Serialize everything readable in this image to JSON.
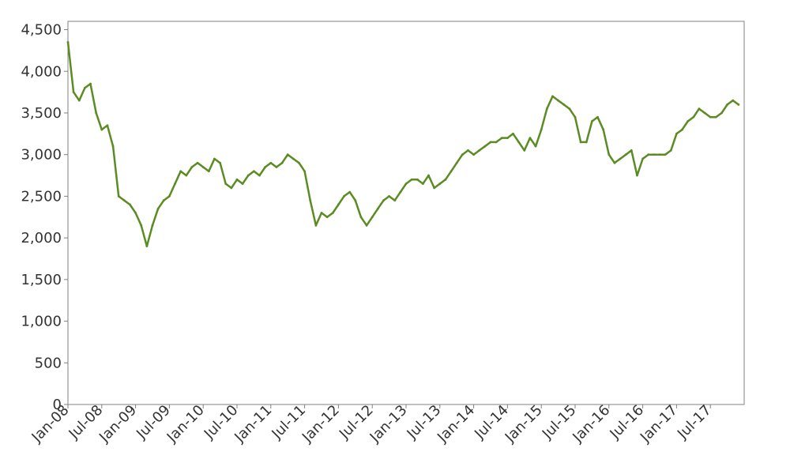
{
  "chart_data": {
    "type": "line",
    "title": "",
    "xlabel": "",
    "ylabel": "",
    "ylim": [
      0,
      4600
    ],
    "xlim": [
      "2008-01",
      "2017-12"
    ],
    "grid": false,
    "legend": "none",
    "y_ticks": [
      0,
      500,
      1000,
      1500,
      2000,
      2500,
      3000,
      3500,
      4000,
      4500
    ],
    "y_tick_labels": [
      "0",
      "500",
      "1,000",
      "1,500",
      "2,000",
      "2,500",
      "3,000",
      "3,500",
      "4,000",
      "4,500"
    ],
    "x_tick_labels": [
      "Jan-08",
      "Jul-08",
      "Jan-09",
      "Jul-09",
      "Jan-10",
      "Jul-10",
      "Jan-11",
      "Jul-11",
      "Jan-12",
      "Jul-12",
      "Jan-13",
      "Jul-13",
      "Jan-14",
      "Jul-14",
      "Jan-15",
      "Jul-15",
      "Jan-16",
      "Jul-16",
      "Jan-17",
      "Jul-17"
    ],
    "series": [
      {
        "color": "#5b8c23",
        "x": [
          "2008-01",
          "2008-02",
          "2008-03",
          "2008-04",
          "2008-05",
          "2008-06",
          "2008-07",
          "2008-08",
          "2008-09",
          "2008-10",
          "2008-11",
          "2008-12",
          "2009-01",
          "2009-02",
          "2009-03",
          "2009-04",
          "2009-05",
          "2009-06",
          "2009-07",
          "2009-08",
          "2009-09",
          "2009-10",
          "2009-11",
          "2009-12",
          "2010-01",
          "2010-02",
          "2010-03",
          "2010-04",
          "2010-05",
          "2010-06",
          "2010-07",
          "2010-08",
          "2010-09",
          "2010-10",
          "2010-11",
          "2010-12",
          "2011-01",
          "2011-02",
          "2011-03",
          "2011-04",
          "2011-05",
          "2011-06",
          "2011-07",
          "2011-08",
          "2011-09",
          "2011-10",
          "2011-11",
          "2011-12",
          "2012-01",
          "2012-02",
          "2012-03",
          "2012-04",
          "2012-05",
          "2012-06",
          "2012-07",
          "2012-08",
          "2012-09",
          "2012-10",
          "2012-11",
          "2012-12",
          "2013-01",
          "2013-02",
          "2013-03",
          "2013-04",
          "2013-05",
          "2013-06",
          "2013-07",
          "2013-08",
          "2013-09",
          "2013-10",
          "2013-11",
          "2013-12",
          "2014-01",
          "2014-02",
          "2014-03",
          "2014-04",
          "2014-05",
          "2014-06",
          "2014-07",
          "2014-08",
          "2014-09",
          "2014-10",
          "2014-11",
          "2014-12",
          "2015-01",
          "2015-02",
          "2015-03",
          "2015-04",
          "2015-05",
          "2015-06",
          "2015-07",
          "2015-08",
          "2015-09",
          "2015-10",
          "2015-11",
          "2015-12",
          "2016-01",
          "2016-02",
          "2016-03",
          "2016-04",
          "2016-05",
          "2016-06",
          "2016-07",
          "2016-08",
          "2016-09",
          "2016-10",
          "2016-11",
          "2016-12",
          "2017-01",
          "2017-02",
          "2017-03",
          "2017-04",
          "2017-05",
          "2017-06",
          "2017-07",
          "2017-08",
          "2017-09",
          "2017-10",
          "2017-11",
          "2017-12"
        ],
        "values": [
          4350,
          3750,
          3650,
          3800,
          3850,
          3500,
          3300,
          3350,
          3100,
          2500,
          2450,
          2400,
          2300,
          2150,
          1900,
          2150,
          2350,
          2450,
          2500,
          2650,
          2800,
          2750,
          2850,
          2900,
          2850,
          2800,
          2950,
          2900,
          2650,
          2600,
          2700,
          2650,
          2750,
          2800,
          2750,
          2850,
          2900,
          2850,
          2900,
          3000,
          2950,
          2900,
          2800,
          2450,
          2150,
          2300,
          2250,
          2300,
          2400,
          2500,
          2550,
          2450,
          2250,
          2150,
          2250,
          2350,
          2450,
          2500,
          2450,
          2550,
          2650,
          2700,
          2700,
          2650,
          2750,
          2600,
          2650,
          2700,
          2800,
          2900,
          3000,
          3050,
          3000,
          3050,
          3100,
          3150,
          3150,
          3200,
          3200,
          3250,
          3150,
          3050,
          3200,
          3100,
          3300,
          3550,
          3700,
          3650,
          3600,
          3550,
          3450,
          3150,
          3150,
          3400,
          3450,
          3300,
          3000,
          2900,
          2950,
          3000,
          3050,
          2750,
          2950,
          3000,
          3000,
          3000,
          3000,
          3050,
          3250,
          3300,
          3400,
          3450,
          3550,
          3500,
          3450,
          3450,
          3500,
          3600,
          3650,
          3600
        ]
      }
    ]
  }
}
